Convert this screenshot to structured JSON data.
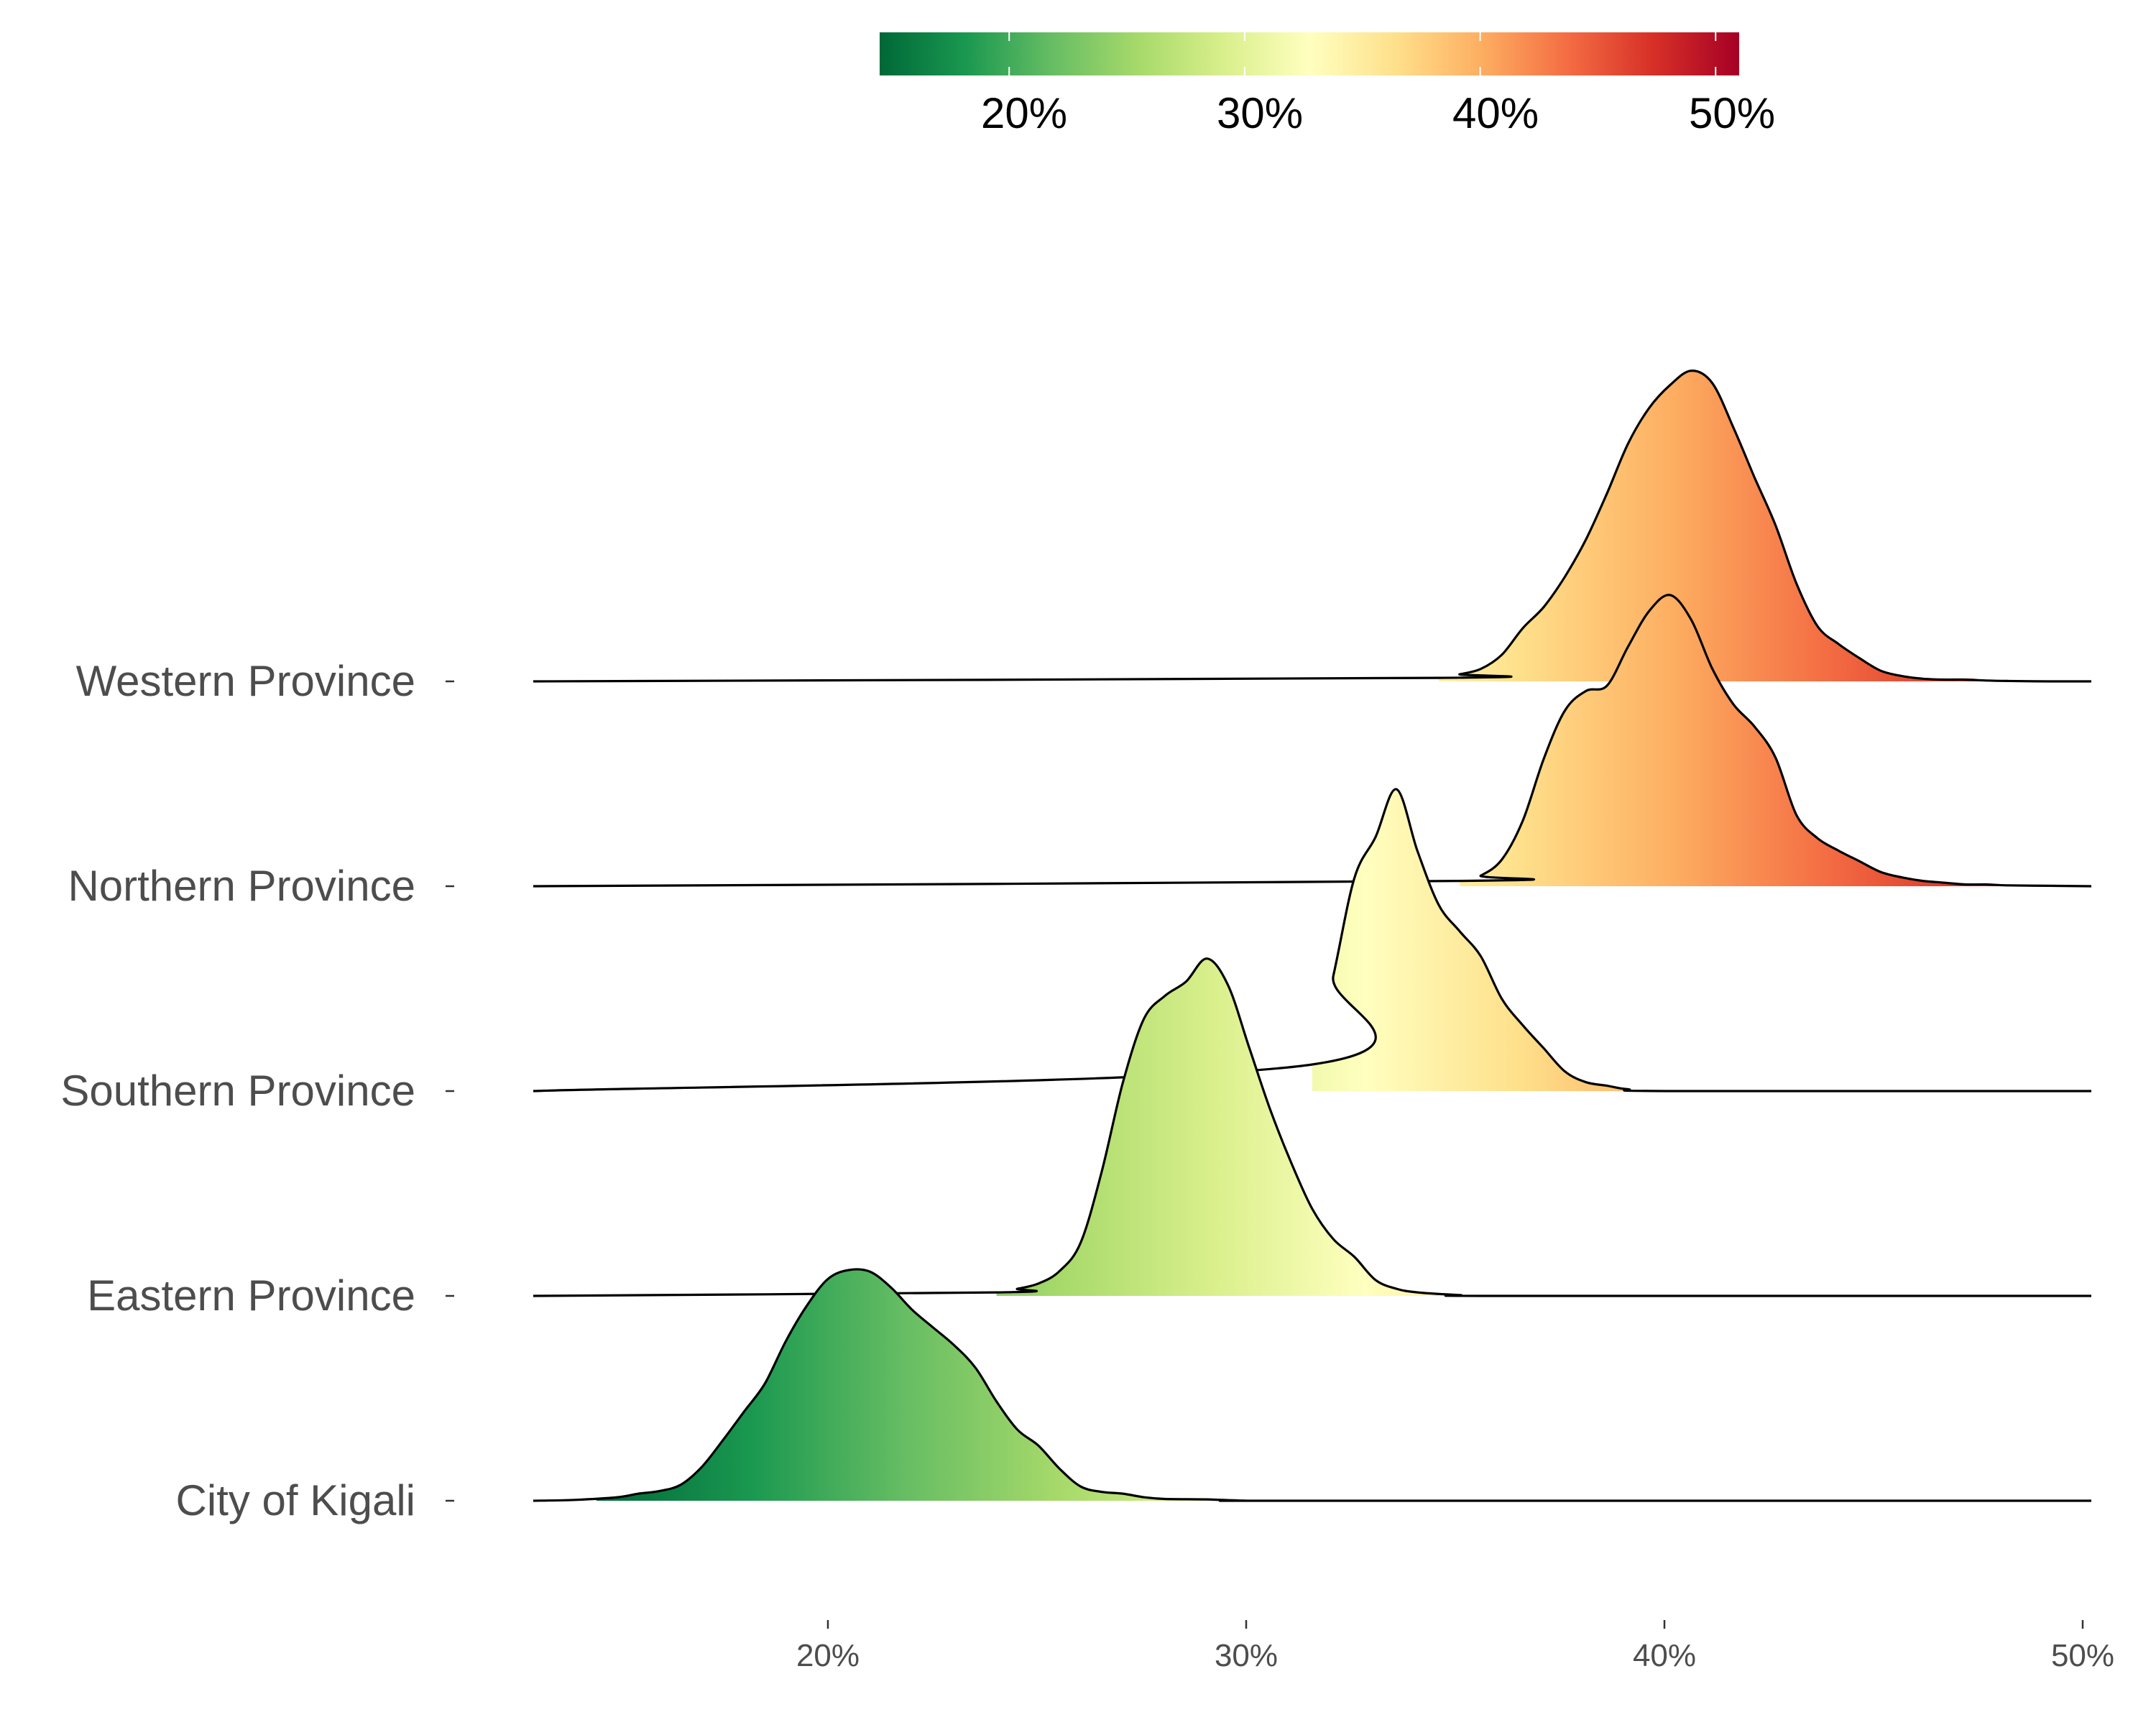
{
  "chart_data": {
    "type": "ridgeline",
    "title": "",
    "xlabel": "",
    "ylabel": "",
    "xlim": [
      13,
      50
    ],
    "x_ticks": [
      20,
      30,
      40,
      50
    ],
    "x_tick_labels": [
      "20%",
      "30%",
      "40%",
      "50%"
    ],
    "categories": [
      "City of Kigali",
      "Eastern Province",
      "Southern Province",
      "Northern Province",
      "Western Province"
    ],
    "series": [
      {
        "name": "City of Kigali",
        "x": [
          13,
          14,
          15,
          15.5,
          16,
          16.5,
          17,
          17.5,
          18,
          18.5,
          19,
          19.5,
          20,
          20.5,
          21,
          21.5,
          22,
          22.5,
          23,
          23.5,
          24,
          24.5,
          25,
          25.5,
          26,
          26.5,
          27,
          27.5,
          28,
          29,
          30,
          31,
          50
        ],
        "y": [
          0,
          0.01,
          0.04,
          0.08,
          0.11,
          0.18,
          0.38,
          0.68,
          1.0,
          1.32,
          1.8,
          2.2,
          2.5,
          2.6,
          2.58,
          2.4,
          2.15,
          1.95,
          1.75,
          1.5,
          1.12,
          0.8,
          0.62,
          0.36,
          0.16,
          0.1,
          0.08,
          0.04,
          0.02,
          0.015,
          0,
          0,
          0
        ],
        "fill_ends": [
          14.5,
          30.5
        ]
      },
      {
        "name": "Eastern Province",
        "x": [
          13,
          24,
          24.5,
          25,
          25.5,
          26,
          26.5,
          27,
          27.5,
          28,
          28.5,
          29,
          29.5,
          30,
          30.5,
          31,
          31.5,
          32,
          32.5,
          33,
          33.5,
          34,
          35,
          36,
          50
        ],
        "y": [
          0,
          0.04,
          0.08,
          0.14,
          0.28,
          0.6,
          1.4,
          2.4,
          3.12,
          3.38,
          3.54,
          3.8,
          3.5,
          2.8,
          2.1,
          1.5,
          0.98,
          0.64,
          0.44,
          0.18,
          0.08,
          0.04,
          0.01,
          0,
          0
        ],
        "fill_ends": [
          24,
          34.5
        ]
      },
      {
        "name": "Southern Province",
        "x": [
          13,
          31.5,
          32,
          32.5,
          33,
          33.5,
          34,
          34.5,
          35,
          35.5,
          36,
          36.5,
          37,
          37.5,
          38,
          38.5,
          39,
          40,
          50
        ],
        "y": [
          0,
          0.3,
          1.3,
          2.4,
          2.86,
          3.4,
          2.7,
          2.1,
          1.8,
          1.52,
          1.04,
          0.74,
          0.48,
          0.22,
          0.1,
          0.06,
          0.02,
          0,
          0
        ],
        "fill_ends": [
          31.5,
          39.5
        ]
      },
      {
        "name": "Northern Province",
        "x": [
          13,
          35,
          35.5,
          36,
          36.5,
          37,
          37.5,
          38,
          38.5,
          39,
          39.5,
          40,
          40.5,
          41,
          41.5,
          42,
          42.5,
          43,
          43.5,
          44,
          44.5,
          45,
          45.5,
          46,
          46.5,
          47,
          47.5,
          48,
          49,
          50
        ],
        "y": [
          0,
          0.06,
          0.12,
          0.3,
          0.74,
          1.44,
          1.98,
          2.2,
          2.26,
          2.7,
          3.1,
          3.28,
          3.0,
          2.45,
          2.05,
          1.8,
          1.45,
          0.8,
          0.54,
          0.4,
          0.28,
          0.16,
          0.1,
          0.06,
          0.04,
          0.02,
          0.02,
          0.01,
          0.005,
          0
        ],
        "fill_ends": [
          35,
          50
        ]
      },
      {
        "name": "Western Province",
        "x": [
          13,
          34.5,
          35,
          35.5,
          36,
          36.5,
          37,
          37.5,
          38,
          38.5,
          39,
          39.5,
          40,
          40.5,
          41,
          41.5,
          42,
          42.5,
          43,
          43.5,
          44,
          44.5,
          45,
          45.5,
          46,
          46.5,
          47,
          47.5,
          48,
          49,
          50
        ],
        "y": [
          0,
          0.04,
          0.08,
          0.14,
          0.3,
          0.6,
          0.84,
          1.18,
          1.6,
          2.12,
          2.68,
          3.08,
          3.34,
          3.5,
          3.36,
          2.86,
          2.3,
          1.76,
          1.1,
          0.62,
          0.42,
          0.26,
          0.12,
          0.06,
          0.03,
          0.02,
          0.02,
          0.01,
          0.005,
          0,
          0
        ],
        "fill_ends": [
          34.5,
          48
        ]
      }
    ],
    "colorbar": {
      "range": [
        14.5,
        51
      ],
      "ticks": [
        20,
        30,
        40,
        50
      ],
      "tick_labels": [
        "20%",
        "30%",
        "40%",
        "50%"
      ],
      "colors": [
        "#006837",
        "#1a9850",
        "#66bd63",
        "#a6d96a",
        "#d9ef8b",
        "#ffffbf",
        "#fee08b",
        "#fdae61",
        "#f46d43",
        "#d73027",
        "#a50026"
      ],
      "position": "top"
    }
  }
}
